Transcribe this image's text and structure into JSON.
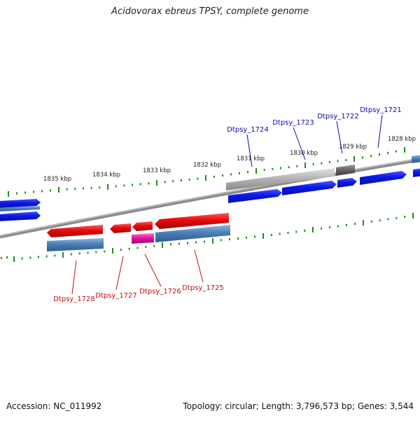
{
  "title": "Acidovorax ebreus TPSY, complete genome",
  "footer": {
    "accession": "Accession: NC_011992",
    "topology": "Topology: circular; Length: 3,796,573 bp; Genes: 3,544"
  },
  "colors": {
    "forward_cds": "#0a18e6",
    "reverse_cds": "#e60a0a",
    "rna_feature": "#e0109a",
    "gene_feature": "#4a7fb8",
    "pseudo_feature": "#a8a8a8",
    "pseudo_dark": "#606060",
    "backbone": "#8c8c8c",
    "tick_mark": "#1e8c1e",
    "forward_label": "#0a0ab4",
    "reverse_label": "#c80a0a"
  },
  "scale_labels": [
    {
      "label": "1835 kbp",
      "kbp": 1835
    },
    {
      "label": "1834 kbp",
      "kbp": 1834
    },
    {
      "label": "1833 kbp",
      "kbp": 1833
    },
    {
      "label": "1832 kbp",
      "kbp": 1832
    },
    {
      "label": "1831 kbp",
      "kbp": 1831
    },
    {
      "label": "1830 kbp",
      "kbp": 1830
    },
    {
      "label": "1829 kbp",
      "kbp": 1829
    },
    {
      "label": "1828 kbp",
      "kbp": 1828
    }
  ],
  "forward_genes": [
    {
      "label": "Dtpsy_1724"
    },
    {
      "label": "Dtpsy_1723"
    },
    {
      "label": "Dtpsy_1722"
    },
    {
      "label": "Dtpsy_1721"
    }
  ],
  "reverse_genes": [
    {
      "label": "Dtpsy_1728"
    },
    {
      "label": "Dtpsy_1727"
    },
    {
      "label": "Dtpsy_1726"
    },
    {
      "label": "Dtpsy_1725"
    }
  ]
}
